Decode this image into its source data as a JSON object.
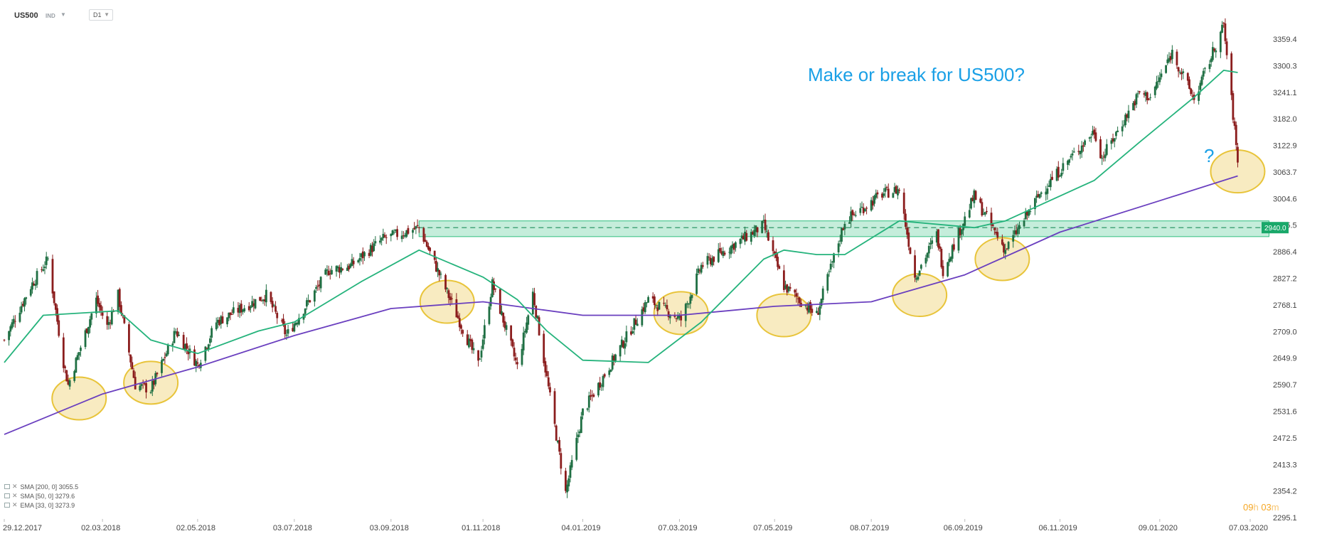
{
  "header": {
    "symbol": "US500",
    "asset_type": "IND",
    "timeframe": "D1"
  },
  "annotation": {
    "title": "Make or break for US500?",
    "question_mark": "?"
  },
  "price_tag": "2940.0",
  "legend": [
    {
      "label": "SMA [200,  0]  3055.5",
      "color": "#6a3fbf"
    },
    {
      "label": "SMA [50,  0]  3279.6",
      "color": "#25b37c"
    },
    {
      "label": "EMA [33,  0]  3273.9",
      "color": "#25b37c"
    }
  ],
  "countdown": {
    "hours": "09",
    "h": "h",
    "minutes": "03",
    "m": "m"
  },
  "colors": {
    "sma200": "#6a3fbf",
    "sma50": "#25b37c",
    "up_candle": "#1f6f43",
    "down_candle": "#8b1d1d",
    "zone_fill": "#2fbf7f",
    "circle_fill": "#f5e3a6",
    "circle_stroke": "#e8c43a",
    "title": "#1aa0e6"
  },
  "chart_data": {
    "type": "candlestick",
    "y_ticks": [
      "3359.4",
      "3300.3",
      "3241.1",
      "3182.0",
      "3122.9",
      "3063.7",
      "3004.6",
      "2945.5",
      "2886.4",
      "2827.2",
      "2768.1",
      "2709.0",
      "2649.9",
      "2590.7",
      "2531.6",
      "2472.5",
      "2413.3",
      "2354.2",
      "2295.1"
    ],
    "x_ticks": [
      "29.12.2017",
      "02.03.2018",
      "02.05.2018",
      "03.07.2018",
      "03.09.2018",
      "01.11.2018",
      "04.01.2019",
      "07.03.2019",
      "07.05.2019",
      "08.07.2019",
      "06.09.2019",
      "06.11.2019",
      "09.01.2020",
      "07.03.2020"
    ],
    "ylim": [
      2295.1,
      3385
    ],
    "price_path": [
      [
        "29.12.2017",
        2690
      ],
      [
        "15.01.2018",
        2810
      ],
      [
        "26.01.2018",
        2870
      ],
      [
        "05.02.2018",
        2640
      ],
      [
        "08.02.2018",
        2590
      ],
      [
        "26.02.2018",
        2780
      ],
      [
        "05.03.2018",
        2720
      ],
      [
        "12.03.2018",
        2790
      ],
      [
        "23.03.2018",
        2590
      ],
      [
        "02.04.2018",
        2580
      ],
      [
        "18.04.2018",
        2710
      ],
      [
        "02.05.2018",
        2635
      ],
      [
        "14.05.2018",
        2730
      ],
      [
        "15.06.2018",
        2790
      ],
      [
        "28.06.2018",
        2700
      ],
      [
        "25.07.2018",
        2845
      ],
      [
        "08.08.2018",
        2855
      ],
      [
        "29.08.2018",
        2915
      ],
      [
        "21.09.2018",
        2940
      ],
      [
        "29.10.2018",
        2635
      ],
      [
        "07.11.2018",
        2815
      ],
      [
        "23.11.2018",
        2630
      ],
      [
        "03.12.2018",
        2795
      ],
      [
        "24.12.2018",
        2350
      ],
      [
        "04.01.2019",
        2530
      ],
      [
        "15.02.2019",
        2780
      ],
      [
        "08.03.2019",
        2735
      ],
      [
        "21.03.2019",
        2855
      ],
      [
        "30.04.2019",
        2945
      ],
      [
        "13.05.2019",
        2810
      ],
      [
        "03.06.2019",
        2745
      ],
      [
        "21.06.2019",
        2955
      ],
      [
        "15.07.2019",
        3015
      ],
      [
        "26.07.2019",
        3025
      ],
      [
        "05.08.2019",
        2830
      ],
      [
        "19.08.2019",
        2925
      ],
      [
        "23.08.2019",
        2845
      ],
      [
        "12.09.2019",
        3010
      ],
      [
        "02.10.2019",
        2890
      ],
      [
        "25.10.2019",
        3020
      ],
      [
        "28.11.2019",
        3155
      ],
      [
        "03.12.2019",
        3095
      ],
      [
        "27.12.2019",
        3240
      ],
      [
        "03.01.2020",
        3230
      ],
      [
        "17.01.2020",
        3330
      ],
      [
        "31.01.2020",
        3225
      ],
      [
        "19.02.2020",
        3390
      ],
      [
        "28.02.2020",
        3090
      ]
    ],
    "sma50_path": [
      [
        "29.12.2017",
        2640
      ],
      [
        "23.01.2018",
        2745
      ],
      [
        "12.03.2018",
        2755
      ],
      [
        "02.04.2018",
        2690
      ],
      [
        "02.05.2018",
        2660
      ],
      [
        "10.06.2018",
        2710
      ],
      [
        "03.07.2018",
        2730
      ],
      [
        "15.08.2018",
        2820
      ],
      [
        "21.09.2018",
        2890
      ],
      [
        "01.11.2018",
        2830
      ],
      [
        "23.11.2018",
        2780
      ],
      [
        "12.12.2018",
        2710
      ],
      [
        "04.01.2019",
        2645
      ],
      [
        "15.02.2019",
        2640
      ],
      [
        "21.03.2019",
        2730
      ],
      [
        "30.04.2019",
        2870
      ],
      [
        "13.05.2019",
        2890
      ],
      [
        "03.06.2019",
        2880
      ],
      [
        "21.06.2019",
        2880
      ],
      [
        "26.07.2019",
        2955
      ],
      [
        "12.09.2019",
        2940
      ],
      [
        "02.10.2019",
        2955
      ],
      [
        "28.11.2019",
        3045
      ],
      [
        "27.12.2019",
        3130
      ],
      [
        "31.01.2020",
        3230
      ],
      [
        "19.02.2020",
        3290
      ],
      [
        "28.02.2020",
        3285
      ]
    ],
    "sma200_path": [
      [
        "29.12.2017",
        2480
      ],
      [
        "02.03.2018",
        2570
      ],
      [
        "02.05.2018",
        2630
      ],
      [
        "03.07.2018",
        2700
      ],
      [
        "03.09.2018",
        2760
      ],
      [
        "01.11.2018",
        2775
      ],
      [
        "04.01.2019",
        2745
      ],
      [
        "07.03.2019",
        2745
      ],
      [
        "07.05.2019",
        2765
      ],
      [
        "08.07.2019",
        2775
      ],
      [
        "06.09.2019",
        2835
      ],
      [
        "06.11.2019",
        2930
      ],
      [
        "09.01.2020",
        3000
      ],
      [
        "28.02.2020",
        3055
      ]
    ],
    "resistance_zone": {
      "from": "21.09.2018",
      "to": "28.02.2020",
      "low": 2920,
      "high": 2955,
      "level": 2940.0
    },
    "support_circles": [
      {
        "date": "15.02.2018",
        "price": 2560
      },
      {
        "date": "02.04.2018",
        "price": 2595
      },
      {
        "date": "09.10.2018",
        "price": 2775
      },
      {
        "date": "08.03.2019",
        "price": 2750
      },
      {
        "date": "13.05.2019",
        "price": 2745
      },
      {
        "date": "08.08.2019",
        "price": 2790
      },
      {
        "date": "30.09.2019",
        "price": 2870
      },
      {
        "date": "28.02.2020",
        "price": 3065
      }
    ]
  }
}
